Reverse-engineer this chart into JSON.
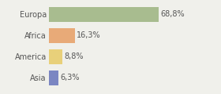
{
  "categories": [
    "Europa",
    "Africa",
    "America",
    "Asia"
  ],
  "values": [
    68.8,
    16.3,
    8.8,
    6.3
  ],
  "labels": [
    "68,8%",
    "16,3%",
    "8,8%",
    "6,3%"
  ],
  "bar_colors": [
    "#a8bc8f",
    "#e8aa78",
    "#e8d07a",
    "#7b86c2"
  ],
  "background_color": "#f0f0eb",
  "xlim": [
    0,
    105
  ],
  "bar_height": 0.72,
  "label_fontsize": 7.0,
  "category_fontsize": 7.0,
  "grid_color": "#d0d0cc",
  "grid_lw": 0.5,
  "text_color": "#555555"
}
